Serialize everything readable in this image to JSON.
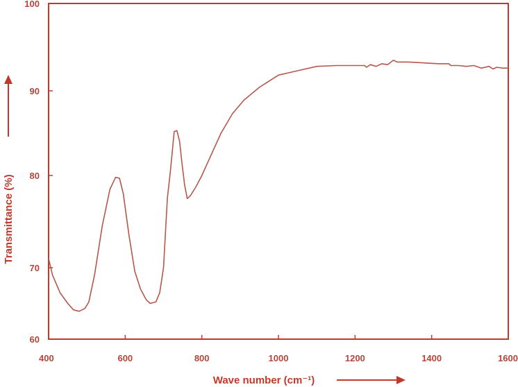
{
  "chart_data": {
    "type": "line",
    "xlabel": "Wave number (cm⁻¹)",
    "ylabel": "Transmittance (%)",
    "xlim": [
      400,
      1600
    ],
    "ylim": [
      60,
      100
    ],
    "x_ticks": [
      "400",
      "600",
      "800",
      "1000",
      "1200",
      "1400",
      "1600"
    ],
    "y_ticks": [
      "60",
      "70",
      "80",
      "90",
      "100"
    ],
    "grid": false,
    "colors": {
      "axis": "#c0392b",
      "line": "#b5574b",
      "text": "#b5453a"
    },
    "series": [
      {
        "x": [
          400,
          410,
          430,
          450,
          465,
          480,
          495,
          505,
          520,
          540,
          560,
          575,
          585,
          595,
          610,
          625,
          640,
          655,
          665,
          680,
          690,
          700,
          710,
          718,
          728,
          735,
          742,
          748,
          755,
          762,
          770,
          785,
          800,
          820,
          850,
          880,
          910,
          950,
          1000,
          1050,
          1100,
          1150,
          1200,
          1225,
          1230,
          1240,
          1255,
          1270,
          1285,
          1300,
          1310,
          1340,
          1380,
          1420,
          1445,
          1450,
          1470,
          1490,
          1510,
          1530,
          1550,
          1560,
          1570,
          1585,
          1600
        ],
        "y": [
          71.0,
          69.0,
          66.5,
          65.0,
          64.1,
          63.9,
          64.3,
          65.2,
          69.0,
          74.5,
          78.5,
          79.8,
          79.7,
          78.0,
          73.5,
          69.5,
          67.0,
          65.5,
          65.0,
          65.2,
          66.5,
          70.0,
          77.5,
          80.5,
          85.2,
          85.3,
          84.0,
          81.5,
          79.0,
          77.5,
          77.8,
          78.8,
          80.0,
          82.0,
          85.0,
          87.3,
          88.9,
          90.4,
          91.8,
          92.3,
          92.8,
          92.9,
          92.9,
          92.9,
          92.7,
          93.0,
          92.8,
          93.1,
          93.0,
          93.5,
          93.3,
          93.3,
          93.2,
          93.1,
          93.1,
          92.9,
          92.9,
          92.8,
          92.9,
          92.6,
          92.8,
          92.5,
          92.7,
          92.6,
          92.6
        ]
      }
    ]
  }
}
